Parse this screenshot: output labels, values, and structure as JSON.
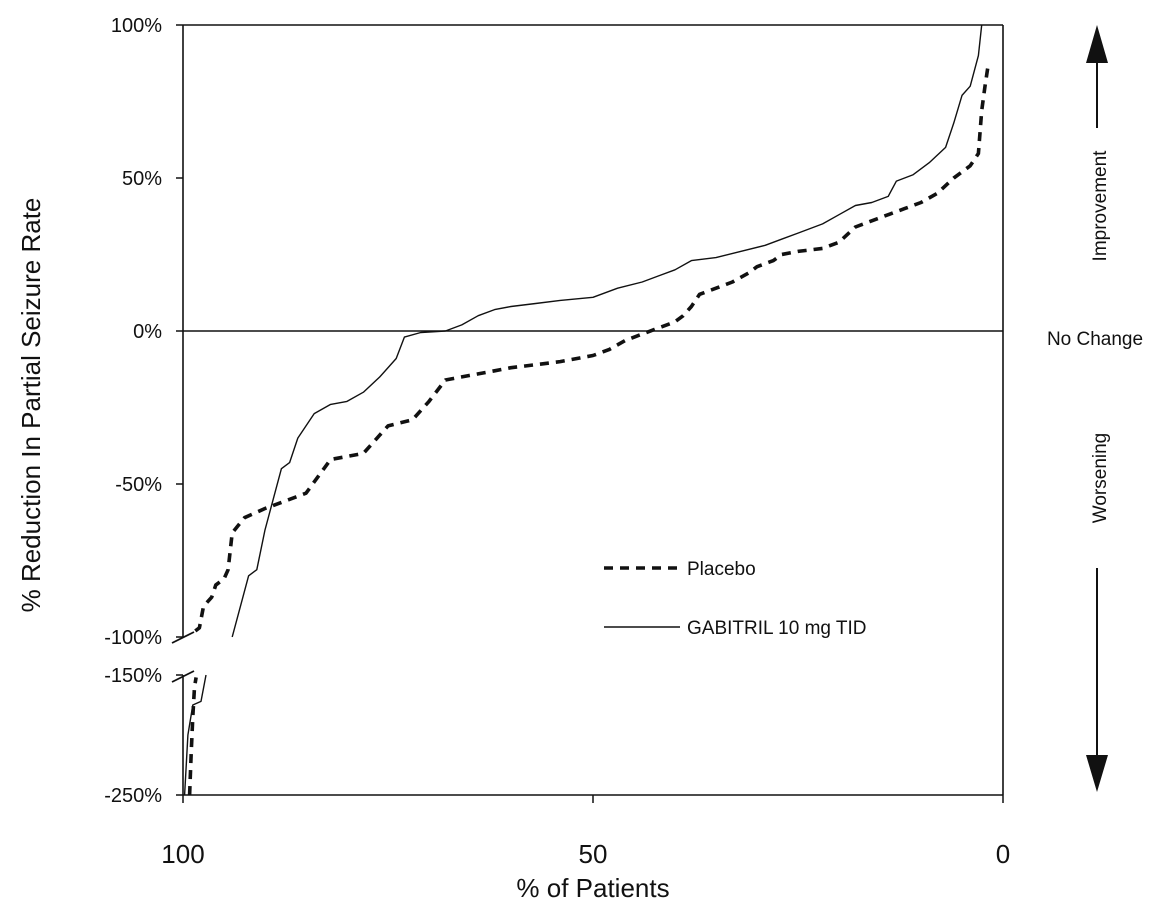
{
  "chart_data": {
    "type": "line",
    "xlabel": "% of Patients",
    "ylabel": "% Reduction In Partial Seizure Rate",
    "xlim": [
      100,
      0
    ],
    "x_ticks": [
      {
        "value": 100,
        "label": "100"
      },
      {
        "value": 50,
        "label": "50"
      },
      {
        "value": 0,
        "label": "0"
      }
    ],
    "y_ticks": [
      {
        "value": 100,
        "label": "100%"
      },
      {
        "value": 50,
        "label": "50%"
      },
      {
        "value": 0,
        "label": "0%"
      },
      {
        "value": -50,
        "label": "-50%"
      },
      {
        "value": -100,
        "label": "-100%"
      },
      {
        "value": -150,
        "label": "-150%"
      },
      {
        "value": -250,
        "label": "-250%"
      }
    ],
    "y_axis_break": {
      "upper": [
        -100,
        100
      ],
      "lower": [
        -250,
        -150
      ]
    },
    "annotations": {
      "improvement": "Improvement",
      "worsening": "Worsening",
      "no_change": "No Change"
    },
    "series": [
      {
        "name": "Placebo",
        "style": "dashed",
        "color": "#111111",
        "points_lower": [
          {
            "x": 99.2,
            "y": -250
          },
          {
            "x": 99.0,
            "y": -215
          },
          {
            "x": 98.8,
            "y": -185
          },
          {
            "x": 98.6,
            "y": -160
          },
          {
            "x": 98.4,
            "y": -152
          }
        ],
        "points_upper": [
          {
            "x": 98.5,
            "y": -98
          },
          {
            "x": 98.0,
            "y": -97
          },
          {
            "x": 97.5,
            "y": -90
          },
          {
            "x": 96.5,
            "y": -87
          },
          {
            "x": 96.0,
            "y": -83
          },
          {
            "x": 95.0,
            "y": -81
          },
          {
            "x": 94.5,
            "y": -78
          },
          {
            "x": 94.0,
            "y": -66
          },
          {
            "x": 92.5,
            "y": -61
          },
          {
            "x": 90.0,
            "y": -58
          },
          {
            "x": 88.0,
            "y": -56
          },
          {
            "x": 85.0,
            "y": -53
          },
          {
            "x": 82.0,
            "y": -42
          },
          {
            "x": 78.0,
            "y": -40
          },
          {
            "x": 75.0,
            "y": -31
          },
          {
            "x": 72.0,
            "y": -29
          },
          {
            "x": 70.0,
            "y": -23
          },
          {
            "x": 68.0,
            "y": -16
          },
          {
            "x": 66.0,
            "y": -15
          },
          {
            "x": 62.0,
            "y": -13
          },
          {
            "x": 60.0,
            "y": -12
          },
          {
            "x": 57.0,
            "y": -11
          },
          {
            "x": 54.0,
            "y": -10
          },
          {
            "x": 50.0,
            "y": -8
          },
          {
            "x": 48.0,
            "y": -6
          },
          {
            "x": 46.0,
            "y": -3
          },
          {
            "x": 44.0,
            "y": -1
          },
          {
            "x": 42.0,
            "y": 1
          },
          {
            "x": 40.0,
            "y": 3
          },
          {
            "x": 39.0,
            "y": 5
          },
          {
            "x": 38.0,
            "y": 8
          },
          {
            "x": 37.0,
            "y": 12
          },
          {
            "x": 35.0,
            "y": 14
          },
          {
            "x": 33.0,
            "y": 16
          },
          {
            "x": 31.0,
            "y": 19
          },
          {
            "x": 30.0,
            "y": 21
          },
          {
            "x": 28.0,
            "y": 23
          },
          {
            "x": 27.0,
            "y": 25
          },
          {
            "x": 25.0,
            "y": 26
          },
          {
            "x": 22.0,
            "y": 27
          },
          {
            "x": 20.0,
            "y": 29
          },
          {
            "x": 18.0,
            "y": 34
          },
          {
            "x": 16.0,
            "y": 36
          },
          {
            "x": 14.0,
            "y": 38
          },
          {
            "x": 12.0,
            "y": 40
          },
          {
            "x": 10.0,
            "y": 42
          },
          {
            "x": 8.0,
            "y": 45
          },
          {
            "x": 6.0,
            "y": 50
          },
          {
            "x": 4.0,
            "y": 54
          },
          {
            "x": 3.0,
            "y": 58
          },
          {
            "x": 2.6,
            "y": 72
          },
          {
            "x": 2.2,
            "y": 80
          },
          {
            "x": 1.8,
            "y": 87
          }
        ]
      },
      {
        "name": "GABITRIL 10 mg TID",
        "style": "solid",
        "color": "#111111",
        "points_lower": [
          {
            "x": 99.8,
            "y": -250
          },
          {
            "x": 99.4,
            "y": -200
          },
          {
            "x": 98.8,
            "y": -175
          },
          {
            "x": 97.8,
            "y": -172
          },
          {
            "x": 97.2,
            "y": -150
          }
        ],
        "points_upper": [
          {
            "x": 94.0,
            "y": -100
          },
          {
            "x": 93.0,
            "y": -90
          },
          {
            "x": 92.0,
            "y": -80
          },
          {
            "x": 91.0,
            "y": -78
          },
          {
            "x": 90.0,
            "y": -65
          },
          {
            "x": 89.0,
            "y": -55
          },
          {
            "x": 88.0,
            "y": -45
          },
          {
            "x": 87.0,
            "y": -43
          },
          {
            "x": 86.0,
            "y": -35
          },
          {
            "x": 84.0,
            "y": -27
          },
          {
            "x": 82.0,
            "y": -24
          },
          {
            "x": 80.0,
            "y": -23
          },
          {
            "x": 78.0,
            "y": -20
          },
          {
            "x": 76.0,
            "y": -15
          },
          {
            "x": 74.0,
            "y": -9
          },
          {
            "x": 73.0,
            "y": -2
          },
          {
            "x": 71.0,
            "y": -0.5
          },
          {
            "x": 68.0,
            "y": 0
          },
          {
            "x": 66.0,
            "y": 2
          },
          {
            "x": 64.0,
            "y": 5
          },
          {
            "x": 62.0,
            "y": 7
          },
          {
            "x": 60.0,
            "y": 8
          },
          {
            "x": 57.0,
            "y": 9
          },
          {
            "x": 54.0,
            "y": 10
          },
          {
            "x": 50.0,
            "y": 11
          },
          {
            "x": 47.0,
            "y": 14
          },
          {
            "x": 44.0,
            "y": 16
          },
          {
            "x": 42.0,
            "y": 18
          },
          {
            "x": 40.0,
            "y": 20
          },
          {
            "x": 38.0,
            "y": 23
          },
          {
            "x": 35.0,
            "y": 24
          },
          {
            "x": 32.0,
            "y": 26
          },
          {
            "x": 29.0,
            "y": 28
          },
          {
            "x": 27.0,
            "y": 30
          },
          {
            "x": 25.0,
            "y": 32
          },
          {
            "x": 22.0,
            "y": 35
          },
          {
            "x": 20.0,
            "y": 38
          },
          {
            "x": 18.0,
            "y": 41
          },
          {
            "x": 16.0,
            "y": 42
          },
          {
            "x": 14.0,
            "y": 44
          },
          {
            "x": 13.0,
            "y": 49
          },
          {
            "x": 11.0,
            "y": 51
          },
          {
            "x": 9.0,
            "y": 55
          },
          {
            "x": 7.0,
            "y": 60
          },
          {
            "x": 6.0,
            "y": 68
          },
          {
            "x": 5.0,
            "y": 77
          },
          {
            "x": 4.0,
            "y": 80
          },
          {
            "x": 3.0,
            "y": 90
          },
          {
            "x": 2.6,
            "y": 100
          }
        ]
      }
    ],
    "legend": {
      "placement": "bottom-right"
    }
  }
}
